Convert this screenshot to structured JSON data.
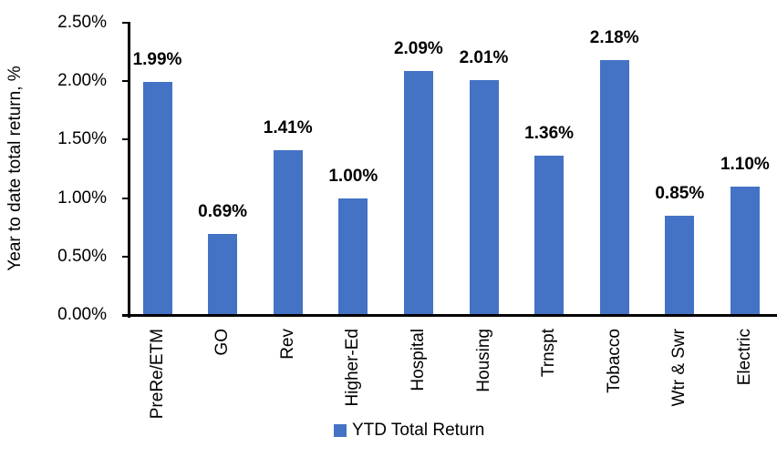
{
  "chart_data": {
    "type": "bar",
    "title": "",
    "xlabel": "",
    "ylabel": "Year to date total return, %",
    "categories": [
      "PreRe/ETM",
      "GO",
      "Rev",
      "Higher-Ed",
      "Hospital",
      "Housing",
      "Trnspt",
      "Tobacco",
      "Wtr & Swr",
      "Electric"
    ],
    "series": [
      {
        "name": "YTD Total Return",
        "values": [
          1.99,
          0.69,
          1.41,
          1.0,
          2.09,
          2.01,
          1.36,
          2.18,
          0.85,
          1.1
        ],
        "value_labels": [
          "1.99%",
          "0.69%",
          "1.41%",
          "1.00%",
          "2.09%",
          "2.01%",
          "1.36%",
          "2.18%",
          "0.85%",
          "1.10%"
        ]
      }
    ],
    "ylim": [
      0,
      2.5
    ],
    "yticks": [
      0,
      0.5,
      1.0,
      1.5,
      2.0,
      2.5
    ],
    "ytick_labels": [
      "0.00%",
      "0.50%",
      "1.00%",
      "1.50%",
      "2.00%",
      "2.50%"
    ],
    "grid": false,
    "legend_position": "bottom",
    "bar_color": "#4472C4",
    "axis_color": "#000000",
    "text_color": "#000000",
    "background_color": "#FFFFFF"
  },
  "legend": {
    "label": "YTD Total Return",
    "swatch_color": "#4472C4"
  }
}
